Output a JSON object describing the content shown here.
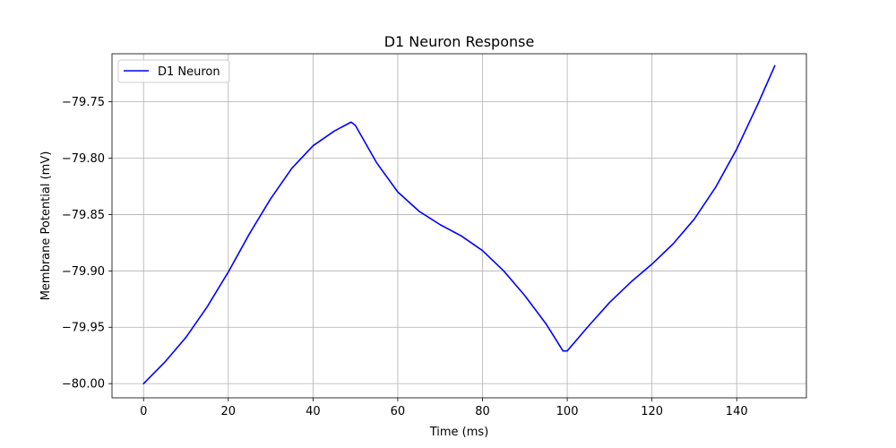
{
  "chart_data": {
    "type": "line",
    "title": "D1 Neuron Response",
    "xlabel": "Time (ms)",
    "ylabel": "Membrane Potential (mV)",
    "xlim": [
      -7.45,
      156.45
    ],
    "ylim": [
      -80.0126,
      -79.7074
    ],
    "xticks": [
      0,
      20,
      40,
      60,
      80,
      100,
      120,
      140
    ],
    "xtick_labels": [
      "0",
      "20",
      "40",
      "60",
      "80",
      "100",
      "120",
      "140"
    ],
    "yticks": [
      -80.0,
      -79.95,
      -79.9,
      -79.85,
      -79.8,
      -79.75
    ],
    "ytick_labels": [
      "−80.00",
      "−79.95",
      "−79.90",
      "−79.85",
      "−79.80",
      "−79.75"
    ],
    "grid": true,
    "legend_position": "top-left",
    "series": [
      {
        "name": "D1 Neuron",
        "color": "#0000ff",
        "x": [
          0,
          5,
          10,
          15,
          20,
          25,
          30,
          35,
          40,
          45,
          49,
          50,
          55,
          60,
          65,
          70,
          75,
          80,
          85,
          90,
          95,
          99,
          100,
          105,
          110,
          115,
          120,
          125,
          130,
          135,
          140,
          145,
          149
        ],
        "y": [
          -80.0,
          -79.981,
          -79.959,
          -79.932,
          -79.901,
          -79.867,
          -79.836,
          -79.809,
          -79.789,
          -79.776,
          -79.768,
          -79.771,
          -79.804,
          -79.83,
          -79.847,
          -79.859,
          -79.869,
          -79.882,
          -79.9,
          -79.922,
          -79.947,
          -79.971,
          -79.971,
          -79.949,
          -79.928,
          -79.91,
          -79.894,
          -79.876,
          -79.854,
          -79.826,
          -79.792,
          -79.752,
          -79.718
        ]
      }
    ]
  }
}
